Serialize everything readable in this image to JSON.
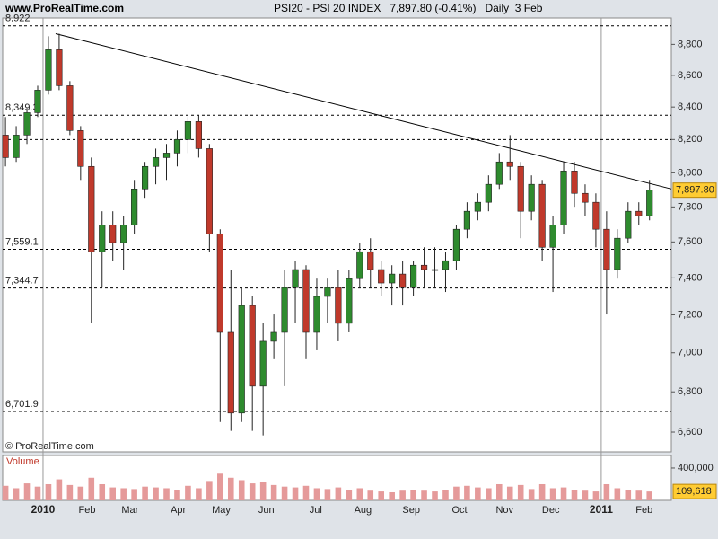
{
  "chart_data": {
    "type": "candlestick",
    "source": "www.ProRealTime.com",
    "title": "PSI20 - PSI 20 INDEX   7,897.80 (-0.41%)   Daily  3 Feb",
    "watermark": "© ProRealTime.com",
    "log_scale": true,
    "up_color": "#2e8b2e",
    "down_color": "#c0392b",
    "x": [
      -3.5,
      -2.5,
      -1.5,
      -0.5,
      0.5,
      1.5,
      2.5,
      3.5,
      4.5,
      5.5,
      6.5,
      7.5,
      8.5,
      9.5,
      10.5,
      11.5,
      12.5,
      13.5,
      14.5,
      15.5,
      16.5,
      17.5,
      18.5,
      19.5,
      20.5,
      21.5,
      22.5,
      23.5,
      24.5,
      25.5,
      26.5,
      27.5,
      28.5,
      29.5,
      30.5,
      31.5,
      32.5,
      33.5,
      34.5,
      35.5,
      36.5,
      37.5,
      38.5,
      39.5,
      40.5,
      41.5,
      42.5,
      43.5,
      44.5,
      45.5,
      46.5,
      47.5,
      48.5,
      49.5,
      50.5,
      51.5,
      52.5,
      53.5,
      54.5,
      55.5,
      56.5
    ],
    "open": [
      8227,
      8091,
      8227,
      8365,
      8506,
      8765,
      8534,
      8255,
      8038,
      7545,
      7697,
      7596,
      7697,
      7905,
      8038,
      8091,
      8118,
      8200,
      8310,
      8145,
      7646,
      7107,
      6694,
      7250,
      6829,
      7060,
      7107,
      7347,
      7446,
      7107,
      7299,
      7347,
      7155,
      7396,
      7545,
      7446,
      7372,
      7421,
      7347,
      7470,
      7446,
      7446,
      7495,
      7672,
      7775,
      7827,
      7932,
      8065,
      8038,
      7775,
      7932,
      7570,
      7697,
      8011,
      7879,
      7827,
      7672,
      7446,
      7621,
      7775,
      7749
    ],
    "high": [
      8338,
      8282,
      8393,
      8534,
      8853,
      8870,
      8563,
      8282,
      8091,
      7775,
      7775,
      7749,
      7958,
      8065,
      8145,
      8173,
      8255,
      8338,
      8349,
      8173,
      7672,
      7446,
      7347,
      7299,
      7155,
      7202,
      7446,
      7495,
      7470,
      7396,
      7396,
      7446,
      7446,
      7596,
      7621,
      7495,
      7470,
      7495,
      7495,
      7570,
      7570,
      7545,
      7697,
      7827,
      7879,
      7985,
      8118,
      8227,
      8065,
      7985,
      7958,
      7749,
      8065,
      8065,
      7932,
      7879,
      7775,
      7672,
      7827,
      7827,
      7958
    ],
    "low": [
      8038,
      8065,
      8173,
      8338,
      8478,
      8506,
      8227,
      7958,
      7155,
      7347,
      7495,
      7446,
      7646,
      7853,
      7932,
      7958,
      8038,
      8118,
      8091,
      7545,
      6650,
      6606,
      6650,
      6606,
      6584,
      6967,
      6829,
      7155,
      6967,
      7013,
      7155,
      7060,
      7107,
      7347,
      7347,
      7299,
      7250,
      7250,
      7299,
      7347,
      7347,
      7323,
      7446,
      7621,
      7723,
      7775,
      7905,
      7958,
      7621,
      7723,
      7495,
      7323,
      7646,
      7801,
      7749,
      7570,
      7202,
      7396,
      7596,
      7697,
      7723
    ],
    "close": [
      8091,
      8227,
      8365,
      8506,
      8765,
      8534,
      8255,
      8038,
      7545,
      7697,
      7596,
      7697,
      7905,
      8038,
      8091,
      8118,
      8200,
      8310,
      8145,
      7646,
      7107,
      6694,
      7250,
      6829,
      7060,
      7107,
      7347,
      7446,
      7107,
      7299,
      7347,
      7155,
      7396,
      7545,
      7446,
      7372,
      7421,
      7347,
      7470,
      7446,
      7446,
      7495,
      7672,
      7775,
      7827,
      7932,
      8065,
      8038,
      7775,
      7932,
      7570,
      7697,
      8011,
      7879,
      7827,
      7672,
      7446,
      7621,
      7775,
      7749,
      7897.8
    ],
    "last_close_label": "7,897.80",
    "xlim": [
      -3.76,
      58.53
    ],
    "xticks": [
      {
        "value": 0,
        "label": "2010"
      },
      {
        "value": 4.1,
        "label": "Feb"
      },
      {
        "value": 8.1,
        "label": "Mar"
      },
      {
        "value": 12.6,
        "label": "Apr"
      },
      {
        "value": 16.6,
        "label": "May"
      },
      {
        "value": 20.8,
        "label": "Jun"
      },
      {
        "value": 25.4,
        "label": "Jul"
      },
      {
        "value": 29.8,
        "label": "Aug"
      },
      {
        "value": 34.3,
        "label": "Sep"
      },
      {
        "value": 38.8,
        "label": "Oct"
      },
      {
        "value": 43.0,
        "label": "Nov"
      },
      {
        "value": 47.3,
        "label": "Dec"
      },
      {
        "value": 52,
        "label": "2011"
      },
      {
        "value": 56.0,
        "label": "Feb"
      }
    ],
    "ylim": [
      6504,
      8974
    ],
    "yticks": [
      {
        "value": 6600,
        "label": "6,600"
      },
      {
        "value": 6800,
        "label": "6,800"
      },
      {
        "value": 7000,
        "label": "7,000"
      },
      {
        "value": 7200,
        "label": "7,200"
      },
      {
        "value": 7400,
        "label": "7,400"
      },
      {
        "value": 7600,
        "label": "7,600"
      },
      {
        "value": 7800,
        "label": "7,800"
      },
      {
        "value": 8000,
        "label": "8,000"
      },
      {
        "value": 8200,
        "label": "8,200"
      },
      {
        "value": 8400,
        "label": "8,400"
      },
      {
        "value": 8600,
        "label": "8,600"
      },
      {
        "value": 8800,
        "label": "8,800"
      }
    ],
    "levels": [
      {
        "value": 8922,
        "label": "8,922"
      },
      {
        "value": 8349.3,
        "label": "8,349.3"
      },
      8200,
      {
        "value": 7559.1,
        "label": "7,559.1"
      },
      {
        "value": 7344.7,
        "label": "7,344.7"
      },
      {
        "value": 6701.9,
        "label": "6,701.9"
      }
    ],
    "trendline": {
      "x": [
        1.17,
        58.53
      ],
      "y": [
        8870,
        7905
      ]
    },
    "volume": {
      "label": "Volume",
      "color": "#e59a9a",
      "ylim": [
        0,
        555000
      ],
      "yticks": [
        {
          "value": 400000,
          "label": "400,000"
        }
      ],
      "values": [
        180000,
        150000,
        210000,
        170000,
        200000,
        260000,
        190000,
        170000,
        280000,
        200000,
        160000,
        150000,
        140000,
        170000,
        160000,
        150000,
        130000,
        180000,
        150000,
        240000,
        330000,
        280000,
        250000,
        210000,
        230000,
        190000,
        170000,
        160000,
        180000,
        150000,
        140000,
        160000,
        130000,
        150000,
        120000,
        110000,
        100000,
        120000,
        130000,
        120000,
        110000,
        130000,
        170000,
        180000,
        160000,
        150000,
        200000,
        170000,
        190000,
        140000,
        200000,
        150000,
        160000,
        130000,
        120000,
        110000,
        200000,
        150000,
        130000,
        120000,
        109618
      ],
      "last_label": "109,618"
    }
  }
}
